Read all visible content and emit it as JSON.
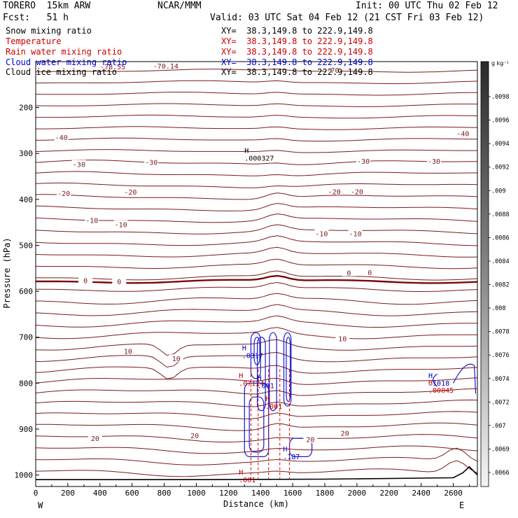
{
  "header": {
    "model": "TORERO  15km ARW",
    "center": "NCAR/MMM",
    "init": "Init: 00 UTC Thu 02 Feb 12",
    "fcst": "Fcst:   51 h",
    "valid": "Valid: 03 UTC Sat 04 Feb 12 (21 CST Fri 03 Feb 12)"
  },
  "fields": [
    {
      "label": "Snow mixing ratio",
      "xy": "XY=  38.3,149.8 to 222.9,149.8",
      "color": "#000000"
    },
    {
      "label": "Temperature",
      "xy": "XY=  38.3,149.8 to 222.9,149.8",
      "color": "#cc0000"
    },
    {
      "label": "Rain water mixing ratio",
      "xy": "XY=  38.3,149.8 to 222.9,149.8",
      "color": "#cc0000"
    },
    {
      "label": "Cloud water mixing ratio",
      "xy": "XY=  38.3,149.8 to 222.9,149.8",
      "color": "#0000cc"
    },
    {
      "label": "Cloud ice mixing ratio",
      "xy": "XY=  38.3,149.8 to 222.9,149.8",
      "color": "#000000"
    }
  ],
  "colors": {
    "temperature": "#7a1a1a",
    "freezing": "#7a0a0a",
    "cloud_water": "#1a1acc",
    "rain": "#e00000",
    "terrain": "#000000"
  },
  "chart_data": {
    "type": "line",
    "xlabel": "Distance (km)",
    "ylabel": "Pressure (hPa)",
    "xlim": [
      0,
      2750
    ],
    "ylim": [
      1025,
      100
    ],
    "x_ticks": [
      0,
      200,
      400,
      600,
      800,
      1000,
      1200,
      1400,
      1600,
      1800,
      2000,
      2200,
      2400,
      2600
    ],
    "y_ticks": [
      200,
      300,
      400,
      500,
      600,
      700,
      800,
      900,
      1000
    ],
    "x_end_labels": [
      "W",
      "E"
    ],
    "colorbar": {
      "unit": "g kg⁻¹",
      "ticks": [
        ".0098",
        ".0096",
        ".0094",
        ".0092",
        ".009",
        ".0088",
        ".0086",
        ".0084",
        ".0082",
        ".008",
        ".0078",
        ".0076",
        ".0074",
        ".0072",
        ".007",
        ".0069",
        ".0066"
      ]
    },
    "temperature_contour_labels": [
      {
        "text": "-78.55",
        "x": 480,
        "p": 112
      },
      {
        "text": "-70.14",
        "x": 810,
        "p": 111
      },
      {
        "text": "-70",
        "x": 1850,
        "p": 120
      },
      {
        "text": "-40",
        "x": 160,
        "p": 266
      },
      {
        "text": "-40",
        "x": 2660,
        "p": 258
      },
      {
        "text": "-30",
        "x": 270,
        "p": 325
      },
      {
        "text": "-30",
        "x": 720,
        "p": 320
      },
      {
        "text": "-30",
        "x": 2040,
        "p": 318
      },
      {
        "text": "-30",
        "x": 2480,
        "p": 318
      },
      {
        "text": "-20",
        "x": 175,
        "p": 388
      },
      {
        "text": "-20",
        "x": 590,
        "p": 385
      },
      {
        "text": "-20",
        "x": 1860,
        "p": 384
      },
      {
        "text": "-20",
        "x": 2000,
        "p": 384
      },
      {
        "text": "-10",
        "x": 350,
        "p": 447
      },
      {
        "text": "-10",
        "x": 530,
        "p": 456
      },
      {
        "text": "-10",
        "x": 1780,
        "p": 476
      },
      {
        "text": "-10",
        "x": 1990,
        "p": 476
      },
      {
        "text": "0",
        "x": 310,
        "p": 578
      },
      {
        "text": "0",
        "x": 520,
        "p": 580
      },
      {
        "text": "0",
        "x": 1950,
        "p": 561
      },
      {
        "text": "0",
        "x": 2080,
        "p": 560
      },
      {
        "text": "10",
        "x": 575,
        "p": 732
      },
      {
        "text": "10",
        "x": 875,
        "p": 748
      },
      {
        "text": "10",
        "x": 1910,
        "p": 704
      },
      {
        "text": "20",
        "x": 370,
        "p": 921
      },
      {
        "text": "20",
        "x": 990,
        "p": 915
      },
      {
        "text": "20",
        "x": 1710,
        "p": 924
      },
      {
        "text": "20",
        "x": 1925,
        "p": 910
      }
    ],
    "extrema": [
      {
        "type": "H",
        "value": ".000327",
        "x": 1300,
        "p": 305,
        "color": "#000000"
      },
      {
        "type": "H",
        "value": ".0317",
        "x": 1285,
        "p": 735,
        "color": "#0000cc"
      },
      {
        "type": "H",
        "value": ".07124",
        "x": 1265,
        "p": 795,
        "color": "#cc0000"
      },
      {
        "type": "H",
        "value": ".001",
        "x": 1380,
        "p": 800,
        "color": "#0000cc"
      },
      {
        "type": "H",
        "value": ".001",
        "x": 1430,
        "p": 845,
        "color": "#cc0000"
      },
      {
        "type": "H",
        "value": ".187",
        "x": 1540,
        "p": 955,
        "color": "#0000cc"
      },
      {
        "type": "H",
        "value": ".001",
        "x": 1265,
        "p": 1005,
        "color": "#cc0000"
      },
      {
        "type": "H",
        "value": ".1018",
        "x": 2445,
        "p": 795,
        "color": "#0000cc"
      },
      {
        "type": "H",
        "value": ".00045",
        "x": 2445,
        "p": 810,
        "color": "#cc0000"
      }
    ]
  }
}
